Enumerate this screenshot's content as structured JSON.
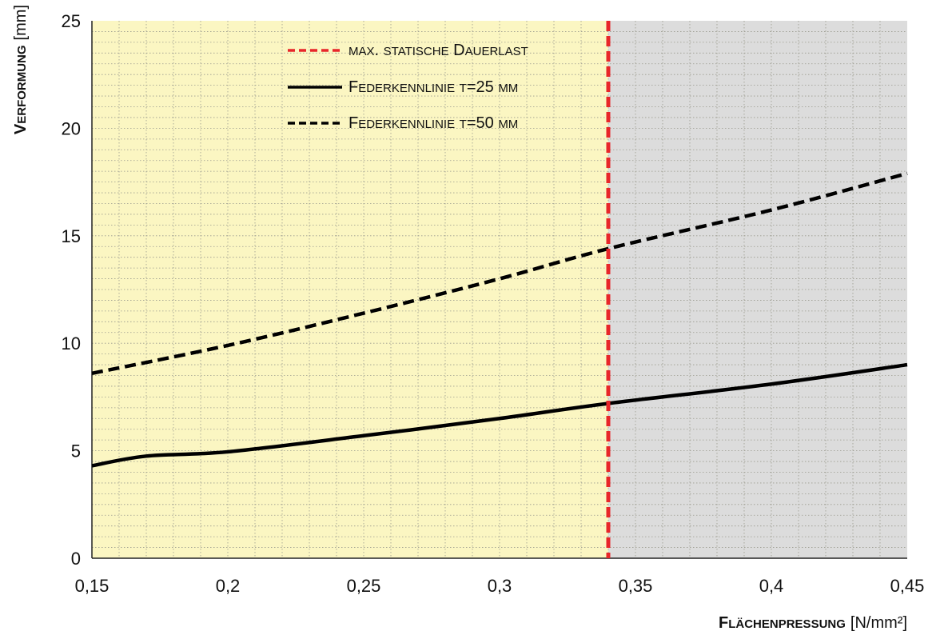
{
  "chart_data": {
    "type": "line",
    "x_axis": {
      "label_main": "Flächenpressung",
      "label_unit": "[N/mm²]",
      "range": [
        0.15,
        0.45
      ],
      "ticks": [
        0.15,
        0.2,
        0.25,
        0.3,
        0.35,
        0.4,
        0.45
      ],
      "tick_labels": [
        "0,15",
        "0,2",
        "0,25",
        "0,3",
        "0,35",
        "0,4",
        "0,45"
      ]
    },
    "y_axis": {
      "label_main": "Verformung",
      "label_unit": "[mm]",
      "range": [
        0,
        25
      ],
      "ticks": [
        0,
        5,
        10,
        15,
        20,
        25
      ],
      "tick_labels": [
        "0",
        "5",
        "10",
        "15",
        "20",
        "25"
      ]
    },
    "grid": true,
    "regions": [
      {
        "x_from": 0.15,
        "x_to": 0.34,
        "color": "#fbf6c2"
      },
      {
        "x_from": 0.34,
        "x_to": 0.45,
        "color": "#dcdcdc"
      }
    ],
    "reference_line": {
      "x": 0.34,
      "name": "max. statische Dauerlast",
      "color": "#e8262a",
      "style": "dashed"
    },
    "series": [
      {
        "name": "Federkennlinie t=25 mm",
        "style": "solid",
        "color": "#000000",
        "x": [
          0.15,
          0.17,
          0.2,
          0.25,
          0.3,
          0.34,
          0.4,
          0.45
        ],
        "y": [
          4.3,
          4.75,
          4.95,
          5.7,
          6.5,
          7.2,
          8.1,
          9.0
        ]
      },
      {
        "name": "Federkennlinie t=50 mm",
        "style": "dashed",
        "color": "#000000",
        "x": [
          0.15,
          0.2,
          0.25,
          0.3,
          0.34,
          0.4,
          0.45
        ],
        "y": [
          8.6,
          9.9,
          11.4,
          13.0,
          14.4,
          16.2,
          17.9
        ]
      }
    ],
    "legend": {
      "position": "top-center",
      "entries": [
        {
          "label": "max. statische Dauerlast",
          "style": "dashed",
          "color": "#e8262a"
        },
        {
          "label": "Federkennlinie t=25 mm",
          "style": "solid",
          "color": "#000000"
        },
        {
          "label": "Federkennlinie t=50 mm",
          "style": "dashed",
          "color": "#000000"
        }
      ]
    }
  }
}
